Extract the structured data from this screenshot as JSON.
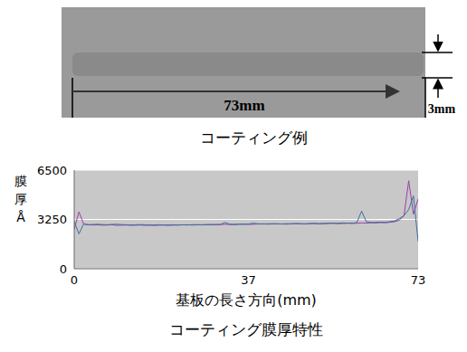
{
  "chart_data": {
    "type": "line",
    "title": "コーティング膜厚特性",
    "xlabel": "基板の長さ方向(mm)",
    "ylabel": "膜厚Å",
    "x": [
      0,
      1,
      2,
      3,
      4,
      5,
      6,
      7,
      8,
      9,
      10,
      11,
      12,
      13,
      14,
      15,
      16,
      17,
      18,
      19,
      20,
      21,
      22,
      23,
      24,
      25,
      26,
      27,
      28,
      29,
      30,
      31,
      32,
      33,
      34,
      35,
      36,
      37,
      38,
      39,
      40,
      41,
      42,
      43,
      44,
      45,
      46,
      47,
      48,
      49,
      50,
      51,
      52,
      53,
      54,
      55,
      56,
      57,
      58,
      59,
      60,
      61,
      62,
      63,
      64,
      65,
      66,
      67,
      68,
      69,
      70,
      71,
      72,
      73
    ],
    "series": [
      {
        "color": "#9b3fa8",
        "values": [
          2600,
          3750,
          2950,
          2900,
          2880,
          2900,
          2870,
          2880,
          2900,
          2860,
          2870,
          2880,
          2860,
          2870,
          2880,
          2860,
          2870,
          2850,
          2870,
          2880,
          2860,
          2870,
          2880,
          2900,
          2880,
          2900,
          2910,
          2890,
          2900,
          2920,
          2900,
          2910,
          2930,
          2920,
          2910,
          2930,
          2940,
          2920,
          2930,
          2950,
          2960,
          2940,
          2950,
          2960,
          2950,
          2940,
          2960,
          2970,
          2960,
          2950,
          2970,
          2980,
          2960,
          2970,
          2980,
          2990,
          2970,
          2980,
          3000,
          2990,
          3000,
          3020,
          3010,
          3030,
          3020,
          3040,
          3030,
          3060,
          3100,
          3200,
          3500,
          5800,
          3600,
          4600
        ]
      },
      {
        "color": "#3d6e9e",
        "values": [
          3100,
          2300,
          2950,
          2900,
          2920,
          2930,
          2910,
          2900,
          2920,
          2930,
          2910,
          2900,
          2890,
          2900,
          2910,
          2900,
          2880,
          2890,
          2900,
          2880,
          2890,
          2900,
          2880,
          2890,
          2900,
          2880,
          2890,
          2900,
          2910,
          2900,
          2920,
          2910,
          3050,
          2930,
          2920,
          2940,
          2930,
          2950,
          3000,
          2960,
          2950,
          2960,
          2970,
          2960,
          2950,
          2970,
          2960,
          2980,
          2970,
          2960,
          2980,
          2990,
          2970,
          2990,
          3000,
          3010,
          3000,
          3020,
          3010,
          3000,
          3050,
          3800,
          3100,
          3050,
          3060,
          3080,
          3070,
          3100,
          3150,
          3300,
          3500,
          3900,
          4800,
          1800
        ]
      }
    ],
    "xlim": [
      0,
      73
    ],
    "xticks": [
      0,
      37,
      73
    ],
    "ylim": [
      0,
      6500
    ],
    "yticks": [
      0,
      3250,
      6500
    ],
    "grid": true
  },
  "image": {
    "caption": "コーティング例",
    "length_label": "73mm",
    "width_label": "3mm"
  }
}
